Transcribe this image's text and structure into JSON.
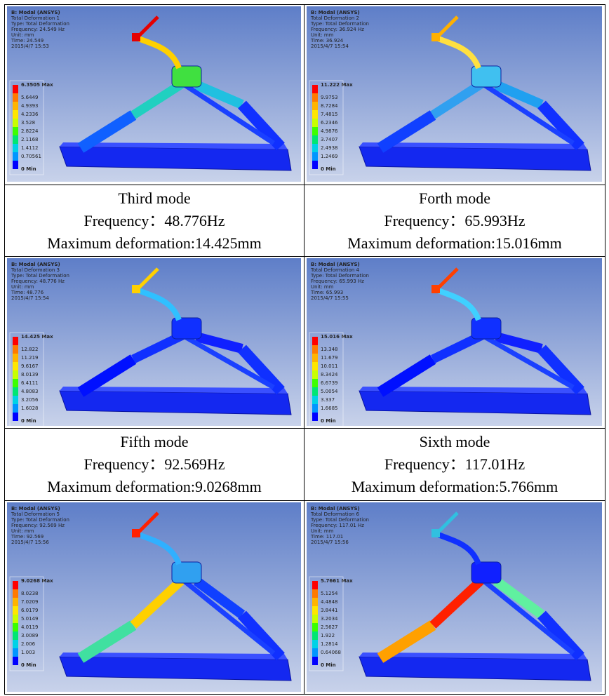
{
  "panels": [
    {
      "header": [
        "B: Modal (ANSYS)",
        "Total Deformation 1",
        "Type: Total Deformation",
        "Frequency: 24.549 Hz",
        "Unit: mm",
        "Time: 24.549",
        "2015/4/7 15:53"
      ],
      "legend": [
        "6.3505 Max",
        "5.6449",
        "4.9393",
        "4.2336",
        "3.528",
        "2.8224",
        "2.1168",
        "1.4112",
        "0.70561",
        "0 Min"
      ]
    },
    {
      "header": [
        "B: Modal (ANSYS)",
        "Total Deformation 2",
        "Type: Total Deformation",
        "Frequency: 36.924 Hz",
        "Unit: mm",
        "Time: 36.924",
        "2015/4/7 15:54"
      ],
      "legend": [
        "11.222 Max",
        "9.9753",
        "8.7284",
        "7.4815",
        "6.2346",
        "4.9876",
        "3.7407",
        "2.4938",
        "1.2469",
        "0 Min"
      ]
    },
    {
      "header": [
        "B: Modal (ANSYS)",
        "Total Deformation 3",
        "Type: Total Deformation",
        "Frequency: 48.776 Hz",
        "Unit: mm",
        "Time: 48.776",
        "2015/4/7 15:54"
      ],
      "legend": [
        "14.425 Max",
        "12.822",
        "11.219",
        "9.6167",
        "8.0139",
        "6.4111",
        "4.8083",
        "3.2056",
        "1.6028",
        "0 Min"
      ]
    },
    {
      "header": [
        "B: Modal (ANSYS)",
        "Total Deformation 4",
        "Type: Total Deformation",
        "Frequency: 65.993 Hz",
        "Unit: mm",
        "Time: 65.993",
        "2015/4/7 15:55"
      ],
      "legend": [
        "15.016 Max",
        "13.348",
        "11.679",
        "10.011",
        "8.3424",
        "6.6739",
        "5.0054",
        "3.337",
        "1.6685",
        "0 Min"
      ]
    },
    {
      "header": [
        "B: Modal (ANSYS)",
        "Total Deformation 5",
        "Type: Total Deformation",
        "Frequency: 92.569 Hz",
        "Unit: mm",
        "Time: 92.569",
        "2015/4/7 15:56"
      ],
      "legend": [
        "9.0268 Max",
        "8.0238",
        "7.0209",
        "6.0179",
        "5.0149",
        "4.0119",
        "3.0089",
        "2.006",
        "1.003",
        "0 Min"
      ]
    },
    {
      "header": [
        "B: Modal (ANSYS)",
        "Total Deformation 6",
        "Type: Total Deformation",
        "Frequency: 117.01 Hz",
        "Unit: mm",
        "Time: 117.01",
        "2015/4/7 15:56"
      ],
      "legend": [
        "5.7661 Max",
        "5.1254",
        "4.4848",
        "3.8441",
        "3.2034",
        "2.5627",
        "1.922",
        "1.2814",
        "0.64068",
        "0 Min"
      ]
    }
  ],
  "captions": [
    [
      {
        "mode": "Third mode",
        "frequency": "Frequency：48.776Hz",
        "deformation": "Maximum deformation:14.425mm"
      },
      {
        "mode": "Forth mode",
        "frequency": "Frequency：65.993Hz",
        "deformation": "Maximum deformation:15.016mm"
      }
    ],
    [
      {
        "mode": "Fifth mode",
        "frequency": "Frequency：92.569Hz",
        "deformation": "Maximum deformation:9.0268mm"
      },
      {
        "mode": "Sixth mode",
        "frequency": "Frequency：117.01Hz",
        "deformation": "Maximum deformation:5.766mm"
      }
    ]
  ]
}
